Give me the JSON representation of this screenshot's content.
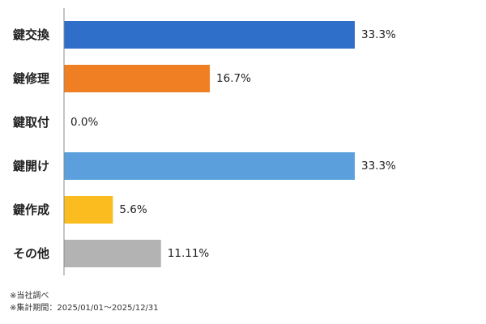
{
  "chart_data": {
    "type": "bar",
    "orientation": "horizontal",
    "categories": [
      "鍵交換",
      "鍵修理",
      "鍵取付",
      "鍵開け",
      "鍵作成",
      "その他"
    ],
    "values": [
      33.3,
      16.7,
      0.0,
      33.3,
      5.6,
      11.11
    ],
    "value_labels": [
      "33.3%",
      "16.7%",
      "0.0%",
      "33.3%",
      "5.6%",
      "11.11%"
    ],
    "colors": [
      "#2f6fca",
      "#f07e22",
      "#2f6fca",
      "#5ba0dc",
      "#fbbc1f",
      "#b3b3b3"
    ],
    "xlim": [
      0,
      33.3
    ],
    "grid": false,
    "legend": "none"
  },
  "notes": {
    "line1": "※当社調べ",
    "line2": "※集計期間：2025/01/01～2025/12/31"
  }
}
